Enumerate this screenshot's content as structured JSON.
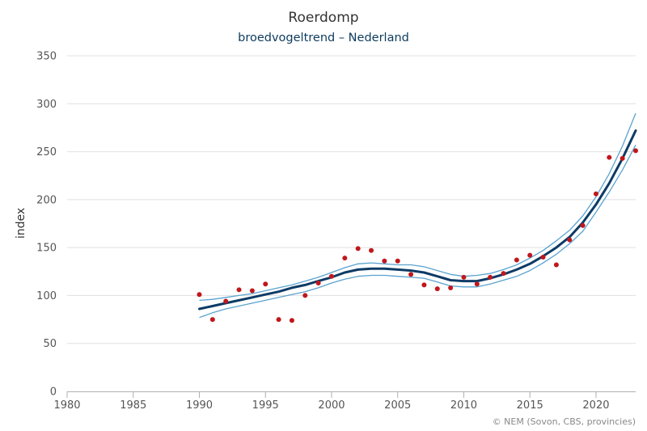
{
  "chart_data": {
    "type": "line",
    "title": "Roerdomp",
    "subtitle": "broedvogeltrend – Nederland",
    "ylabel": "index",
    "xlabel": "",
    "xlim": [
      1980,
      2023
    ],
    "ylim": [
      0,
      350
    ],
    "x_ticks": [
      1980,
      1985,
      1990,
      1995,
      2000,
      2005,
      2010,
      2015,
      2020
    ],
    "y_ticks": [
      0,
      50,
      100,
      150,
      200,
      250,
      300,
      350
    ],
    "grid": "horizontal",
    "credit": "© NEM (Sovon, CBS, provincies)",
    "colors": {
      "trend": "#0d3b66",
      "band": "#5aa2cf",
      "points": "#c0171c",
      "grid": "#e0e0e0"
    },
    "observed": {
      "x": [
        1990,
        1991,
        1992,
        1993,
        1994,
        1995,
        1996,
        1997,
        1998,
        1999,
        2000,
        2001,
        2002,
        2003,
        2004,
        2005,
        2006,
        2007,
        2008,
        2009,
        2010,
        2011,
        2012,
        2013,
        2014,
        2015,
        2016,
        2017,
        2018,
        2019,
        2020,
        2021,
        2022,
        2023
      ],
      "y": [
        101,
        75,
        94,
        106,
        105,
        112,
        75,
        74,
        100,
        113,
        120,
        139,
        149,
        147,
        136,
        136,
        122,
        111,
        107,
        108,
        119,
        112,
        119,
        123,
        137,
        142,
        140,
        132,
        158,
        173,
        206,
        244,
        243,
        251
      ]
    },
    "trend": {
      "x": [
        1990,
        1991,
        1992,
        1993,
        1994,
        1995,
        1996,
        1997,
        1998,
        1999,
        2000,
        2001,
        2002,
        2003,
        2004,
        2005,
        2006,
        2007,
        2008,
        2009,
        2010,
        2011,
        2012,
        2013,
        2014,
        2015,
        2016,
        2017,
        2018,
        2019,
        2020,
        2021,
        2022,
        2023
      ],
      "y": [
        86,
        89,
        92,
        95,
        98,
        101,
        104,
        108,
        111,
        115,
        119,
        124,
        127,
        128,
        128,
        127,
        126,
        124,
        120,
        116,
        115,
        115,
        118,
        122,
        127,
        133,
        141,
        150,
        161,
        176,
        195,
        217,
        243,
        272
      ]
    },
    "upper": {
      "x": [
        1990,
        1991,
        1992,
        1993,
        1994,
        1995,
        1996,
        1997,
        1998,
        1999,
        2000,
        2001,
        2002,
        2003,
        2004,
        2005,
        2006,
        2007,
        2008,
        2009,
        2010,
        2011,
        2012,
        2013,
        2014,
        2015,
        2016,
        2017,
        2018,
        2019,
        2020,
        2021,
        2022,
        2023
      ],
      "y": [
        95,
        96,
        98,
        100,
        102,
        105,
        108,
        111,
        115,
        119,
        124,
        129,
        133,
        134,
        133,
        132,
        132,
        130,
        126,
        122,
        120,
        121,
        123,
        127,
        132,
        139,
        147,
        157,
        168,
        183,
        203,
        227,
        256,
        290
      ]
    },
    "lower": {
      "x": [
        1990,
        1991,
        1992,
        1993,
        1994,
        1995,
        1996,
        1997,
        1998,
        1999,
        2000,
        2001,
        2002,
        2003,
        2004,
        2005,
        2006,
        2007,
        2008,
        2009,
        2010,
        2011,
        2012,
        2013,
        2014,
        2015,
        2016,
        2017,
        2018,
        2019,
        2020,
        2021,
        2022,
        2023
      ],
      "y": [
        77,
        82,
        86,
        89,
        92,
        95,
        98,
        101,
        104,
        108,
        113,
        117,
        120,
        121,
        121,
        120,
        119,
        118,
        114,
        110,
        109,
        109,
        112,
        116,
        120,
        126,
        134,
        143,
        154,
        167,
        187,
        208,
        231,
        257
      ]
    }
  }
}
